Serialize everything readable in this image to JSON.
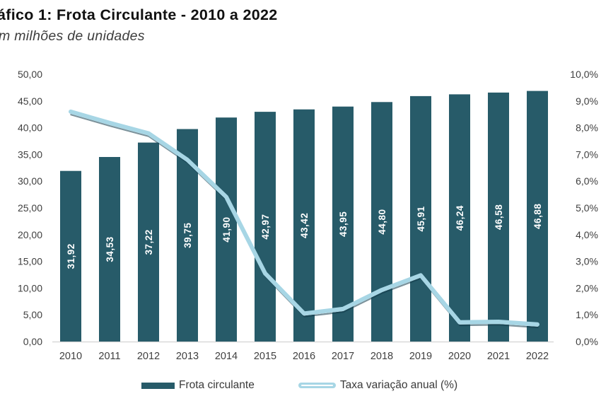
{
  "header": {
    "title": "áfico 1: Frota Circulante - 2010 a 2022",
    "subtitle": "m milhões de unidades"
  },
  "chart_data": {
    "type": "bar+line combo",
    "title": "áfico 1: Frota Circulante - 2010 a 2022",
    "subtitle": "m milhões de unidades",
    "xlabel": "",
    "ylabel_left": "milhões de unidades",
    "ylabel_right": "%",
    "grid": "off",
    "legend_position": "bottom",
    "categories": [
      "2010",
      "2011",
      "2012",
      "2013",
      "2014",
      "2015",
      "2016",
      "2017",
      "2018",
      "2019",
      "2020",
      "2021",
      "2022"
    ],
    "series": [
      {
        "name": "Frota circulante",
        "type": "bar",
        "axis": "left",
        "color": "#275B69",
        "values": [
          31.92,
          34.53,
          37.22,
          39.75,
          41.9,
          42.97,
          43.42,
          43.95,
          44.8,
          45.91,
          46.24,
          46.58,
          46.88
        ],
        "labels": [
          "31,92",
          "34,53",
          "37,22",
          "39,75",
          "41,90",
          "42,97",
          "43,42",
          "43,95",
          "44,80",
          "45,91",
          "46,24",
          "46,58",
          "46,88"
        ]
      },
      {
        "name": "Taxa variação anual (%)",
        "type": "line",
        "axis": "right",
        "color": "#A7D6E5",
        "shadow_color": "rgba(16,56,72,0.55)",
        "values": [
          8.6,
          8.18,
          7.79,
          6.8,
          5.41,
          2.55,
          1.05,
          1.22,
          1.93,
          2.48,
          0.72,
          0.74,
          0.64
        ]
      }
    ],
    "left_axis": {
      "min": 0,
      "max": 50,
      "step": 5,
      "tick_labels": [
        "0,00",
        "5,00",
        "10,00",
        "15,00",
        "20,00",
        "25,00",
        "30,00",
        "35,00",
        "40,00",
        "45,00",
        "50,00"
      ]
    },
    "right_axis": {
      "min": 0,
      "max": 10,
      "step": 1,
      "tick_labels": [
        "0,0%",
        "1,0%",
        "2,0%",
        "3,0%",
        "4,0%",
        "5,0%",
        "6,0%",
        "7,0%",
        "8,0%",
        "9,0%",
        "10,0%"
      ]
    },
    "colors": {
      "bar": "#275B69",
      "line": "#A7D6E5",
      "axis_line": "#D9D9D9",
      "tick_text": "#404040",
      "bar_label_text": "#FFFFFF"
    }
  },
  "legend": {
    "items": [
      {
        "label": "Frota circulante"
      },
      {
        "label": "Taxa variação anual (%)"
      }
    ]
  }
}
